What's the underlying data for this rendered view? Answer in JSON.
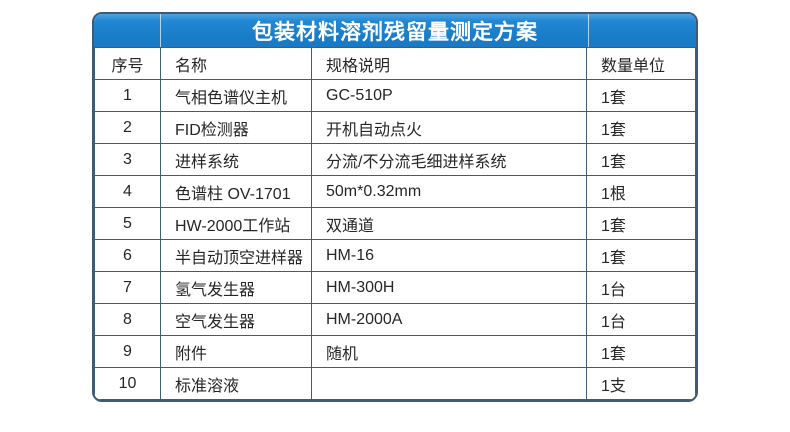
{
  "title": "包装材料溶剂残留量测定方案",
  "table": {
    "headers": [
      "序号",
      "名称",
      "规格说明",
      "数量单位"
    ],
    "rows": [
      [
        "1",
        "气相色谱仪主机",
        "GC-510P",
        "1套"
      ],
      [
        "2",
        "FID检测器",
        "开机自动点火",
        "1套"
      ],
      [
        "3",
        "进样系统",
        "分流/不分流毛细进样系统",
        "1套"
      ],
      [
        "4",
        "色谱柱 OV-1701",
        "50m*0.32mm",
        "1根"
      ],
      [
        "5",
        "HW-2000工作站",
        "双通道",
        "1套"
      ],
      [
        "6",
        "半自动顶空进样器",
        "HM-16",
        "1套"
      ],
      [
        "7",
        "氢气发生器",
        "HM-300H",
        "1台"
      ],
      [
        "8",
        "空气发生器",
        "HM-2000A",
        "1台"
      ],
      [
        "9",
        "附件",
        "随机",
        "1套"
      ],
      [
        "10",
        "标准溶液",
        "",
        "1支"
      ]
    ]
  },
  "colors": {
    "title_bar_blue": "#1b7ecb",
    "title_bar_blue_light": "#4da3e0",
    "grid_line": "#3f5c78",
    "outer_border": "#3d5a76",
    "title_text": "#ffffff",
    "body_text": "#262626",
    "background": "#ffffff"
  }
}
